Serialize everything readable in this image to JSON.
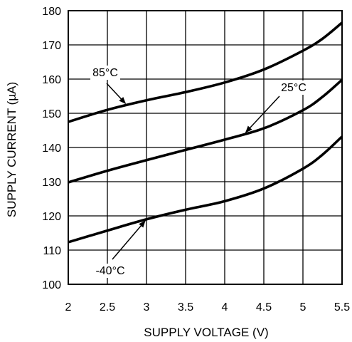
{
  "chart_data": {
    "type": "line",
    "title": "",
    "xlabel": "SUPPLY VOLTAGE (V)",
    "ylabel": "SUPPLY CURRENT (µA)",
    "xlim": [
      2,
      5.5
    ],
    "ylim": [
      100,
      180
    ],
    "x_ticks": [
      2,
      2.5,
      3,
      3.5,
      4,
      4.5,
      5,
      5.5
    ],
    "x_tick_labels": [
      "2",
      "2.5",
      "3",
      "3.5",
      "4",
      "4.5",
      "5",
      "5.5"
    ],
    "y_ticks": [
      100,
      110,
      120,
      130,
      140,
      150,
      160,
      170,
      180
    ],
    "y_tick_labels": [
      "100",
      "110",
      "120",
      "130",
      "140",
      "150",
      "160",
      "170",
      "180"
    ],
    "grid": true,
    "legend": "none",
    "line_color": "#000000",
    "x": [
      2.0,
      2.5,
      3.0,
      3.5,
      4.0,
      4.5,
      5.0,
      5.25,
      5.5
    ],
    "series": [
      {
        "name": "85°C",
        "values": [
          147.5,
          151.0,
          153.8,
          156.2,
          159.0,
          162.8,
          168.3,
          171.8,
          176.5
        ]
      },
      {
        "name": "25°C",
        "values": [
          129.8,
          133.2,
          136.3,
          139.3,
          142.3,
          145.6,
          150.9,
          154.8,
          159.8
        ]
      },
      {
        "name": "-40°C",
        "values": [
          112.3,
          115.7,
          119.0,
          121.8,
          124.3,
          128.0,
          133.8,
          137.9,
          143.2
        ]
      }
    ],
    "annotations": [
      {
        "text": "85°C",
        "series": 0,
        "arrow_to_x": 2.75
      },
      {
        "text": "25°C",
        "series": 1,
        "arrow_to_x": 4.25
      },
      {
        "text": "-40°C",
        "series": 2,
        "arrow_to_x": 3.0
      }
    ]
  }
}
